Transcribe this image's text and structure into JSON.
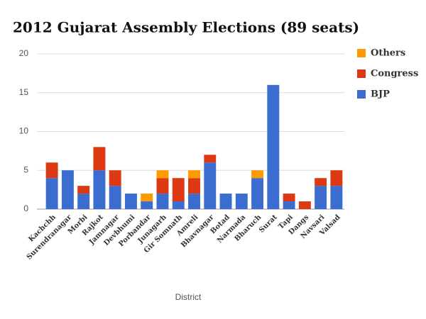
{
  "chart_data": {
    "type": "stacked_bar",
    "title": "2012 Gujarat Assembly Elections (89 seats)",
    "x_label": "District",
    "categories": [
      "Kachchh",
      "Surendranagar",
      "Morbi",
      "Rajkot",
      "Jamnagar",
      "Devbhumi",
      "Porbandar",
      "Junagarh",
      "Gir Somnath",
      "Amreli",
      "Bhavnagar",
      "Botad",
      "Narmada",
      "Bharuch",
      "Surat",
      "Tapi",
      "Dangs",
      "Navsari",
      "Valsad"
    ],
    "series": [
      {
        "name": "BJP",
        "color": "#3b6cd0",
        "values": [
          4,
          5,
          2,
          5,
          3,
          2,
          1,
          2,
          1,
          2,
          6,
          2,
          2,
          4,
          16,
          1,
          0,
          3,
          3
        ]
      },
      {
        "name": "Congress",
        "color": "#dc3912",
        "values": [
          2,
          0,
          1,
          3,
          2,
          0,
          0,
          2,
          3,
          2,
          1,
          0,
          0,
          0,
          0,
          1,
          1,
          1,
          2
        ]
      },
      {
        "name": "Others",
        "color": "#ff9900",
        "values": [
          0,
          0,
          0,
          0,
          0,
          0,
          1,
          1,
          0,
          1,
          0,
          0,
          0,
          1,
          0,
          0,
          0,
          0,
          0
        ]
      }
    ],
    "ylim": [
      0,
      20
    ],
    "yticks": [
      0,
      5,
      10,
      15,
      20
    ],
    "grid": true,
    "legend": "right"
  }
}
